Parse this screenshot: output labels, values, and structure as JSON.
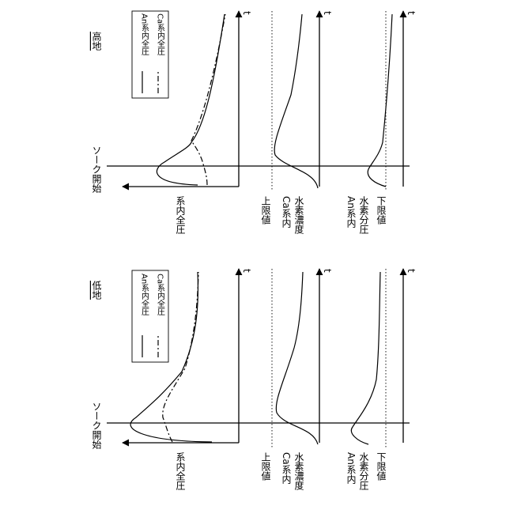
{
  "panels": [
    {
      "title": "低地",
      "soak_label": "ソーク開始",
      "axis_t": "t",
      "pressure_label": "系内全圧",
      "legend": {
        "an": "An系内全圧",
        "ca": "Ca系内全圧"
      },
      "ca_h2_label": [
        "Ca系内",
        "水素濃度"
      ],
      "an_h2_label": [
        "An系内",
        "水素分圧"
      ],
      "upper_limit": "上限値",
      "lower_limit": "下限値"
    },
    {
      "title": "高地",
      "soak_label": "ソーク開始",
      "axis_t": "t",
      "pressure_label": "系内全圧",
      "legend": {
        "an": "An系内全圧",
        "ca": "Ca系内全圧"
      },
      "ca_h2_label": [
        "Ca系内",
        "水素濃度"
      ],
      "an_h2_label": [
        "An系内",
        "水素分圧"
      ],
      "upper_limit": "上限値",
      "lower_limit": "下限値"
    }
  ]
}
